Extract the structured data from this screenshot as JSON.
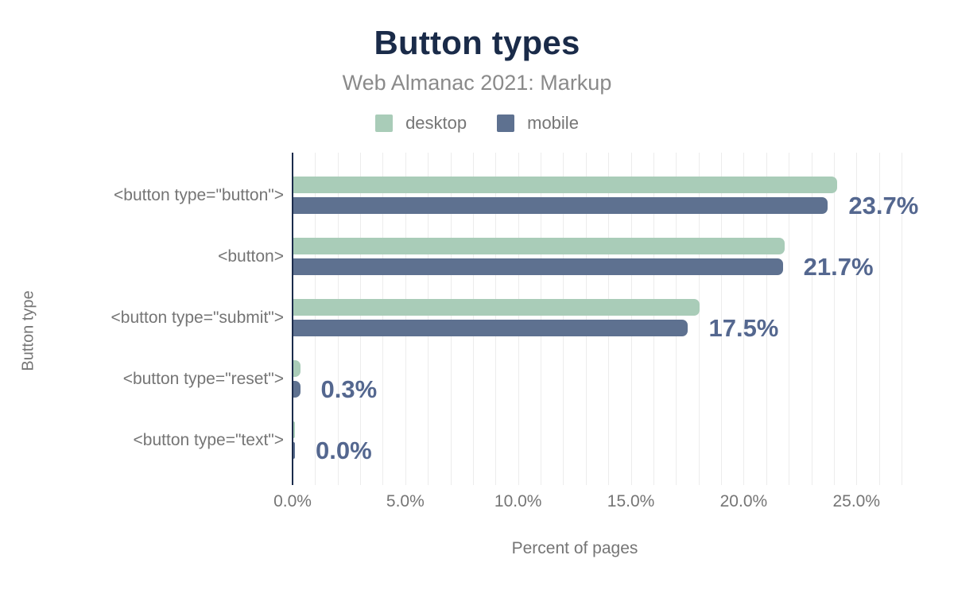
{
  "title": "Button types",
  "subtitle": "Web Almanac 2021: Markup",
  "legend": [
    {
      "label": "desktop",
      "color": "#a9ccb8"
    },
    {
      "label": "mobile",
      "color": "#5e7190"
    }
  ],
  "colors": {
    "title_navy": "#1a2b49",
    "axis_line": "#1b2b4b",
    "desktop_green": "#a9ccb8",
    "mobile_slate": "#5e7190",
    "value_label_blue": "#54678f",
    "axis_text_gray": "#757575",
    "subtitle_gray": "#8a8a8a",
    "gridline_gray": "#ececec"
  },
  "chart_data": {
    "type": "bar",
    "orientation": "horizontal",
    "title": "Button types",
    "subtitle": "Web Almanac 2021: Markup",
    "xlabel": "Percent of pages",
    "ylabel": "Button type",
    "categories": [
      "<button type=\"button\">",
      "<button>",
      "<button type=\"submit\">",
      "<button type=\"reset\">",
      "<button type=\"text\">"
    ],
    "series": [
      {
        "name": "desktop",
        "color": "#a9ccb8",
        "values": [
          24.1,
          21.8,
          18.0,
          0.3,
          0.0
        ]
      },
      {
        "name": "mobile",
        "color": "#5e7190",
        "values": [
          23.7,
          21.7,
          17.5,
          0.3,
          0.0
        ]
      }
    ],
    "value_labels": [
      "23.7%",
      "21.7%",
      "17.5%",
      "0.3%",
      "0.0%"
    ],
    "x_ticks": [
      "0.0%",
      "5.0%",
      "10.0%",
      "15.0%",
      "20.0%",
      "25.0%"
    ],
    "x_tick_values": [
      0,
      5,
      10,
      15,
      20,
      25
    ],
    "xlim": [
      0,
      27
    ],
    "grid": "minor vertical gridlines every 1%",
    "legend_position": "top center"
  }
}
